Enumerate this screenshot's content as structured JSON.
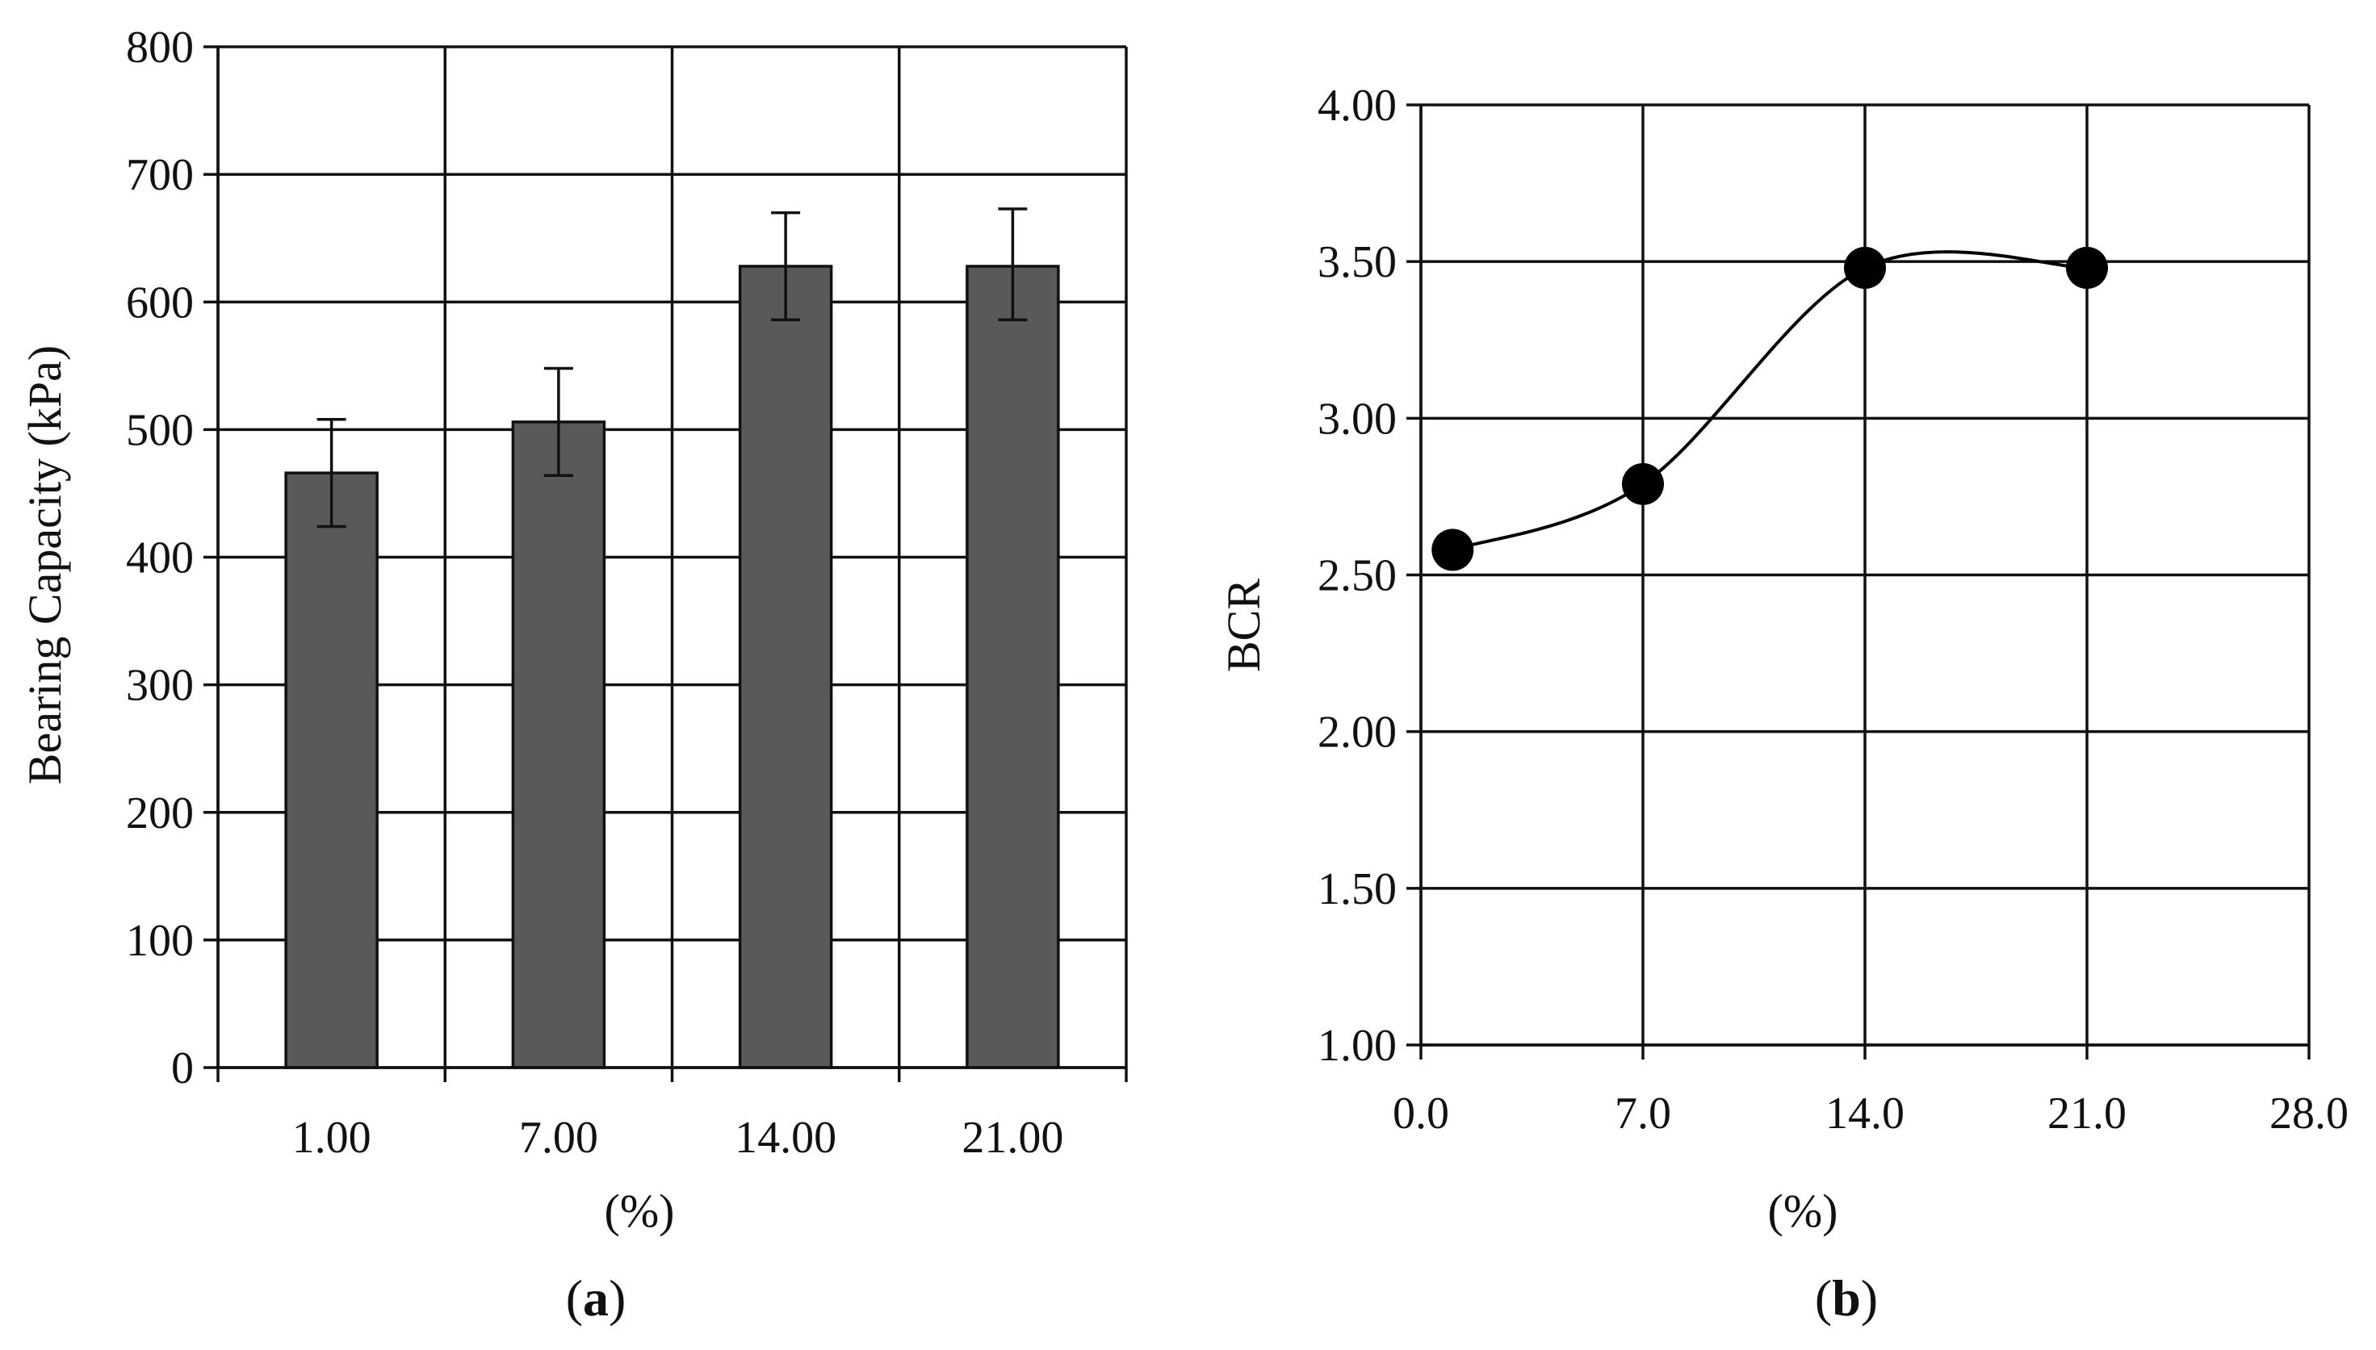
{
  "chart_data": [
    {
      "type": "bar",
      "title": "",
      "xlabel": "(%)",
      "ylabel": "Bearing Capacity (kPa)",
      "categories": [
        "1.00",
        "7.00",
        "14.00",
        "21.00"
      ],
      "values": [
        466,
        506,
        628,
        628
      ],
      "error_plus": [
        42,
        42,
        42,
        45
      ],
      "error_minus": [
        42,
        42,
        42,
        42
      ],
      "ylim": [
        0,
        800
      ],
      "yticks": [
        0,
        100,
        200,
        300,
        400,
        500,
        600,
        700,
        800
      ],
      "ytick_labels": [
        "0",
        "100",
        "200",
        "300",
        "400",
        "500",
        "600",
        "700",
        "800"
      ],
      "grid": true,
      "bar_color": "#595959",
      "panel_label": {
        "open": "(",
        "letter": "a",
        "close": ")"
      }
    },
    {
      "type": "line",
      "title": "",
      "xlabel": "(%)",
      "ylabel": "BCR",
      "x": [
        1,
        7,
        14,
        21
      ],
      "y": [
        2.58,
        2.79,
        3.48,
        3.48
      ],
      "smooth": true,
      "marker": "circle",
      "xlim": [
        0,
        28
      ],
      "ylim": [
        1.0,
        4.0
      ],
      "xticks": [
        0,
        7,
        14,
        21,
        28
      ],
      "xtick_labels": [
        "0.0",
        "7.0",
        "14.0",
        "21.0",
        "28.0"
      ],
      "yticks": [
        1.0,
        1.5,
        2.0,
        2.5,
        3.0,
        3.5,
        4.0
      ],
      "ytick_labels": [
        "1.00",
        "1.50",
        "2.00",
        "2.50",
        "3.00",
        "3.50",
        "4.00"
      ],
      "grid": true,
      "line_color": "#000000",
      "panel_label": {
        "open": "(",
        "letter": "b",
        "close": ")"
      }
    }
  ]
}
